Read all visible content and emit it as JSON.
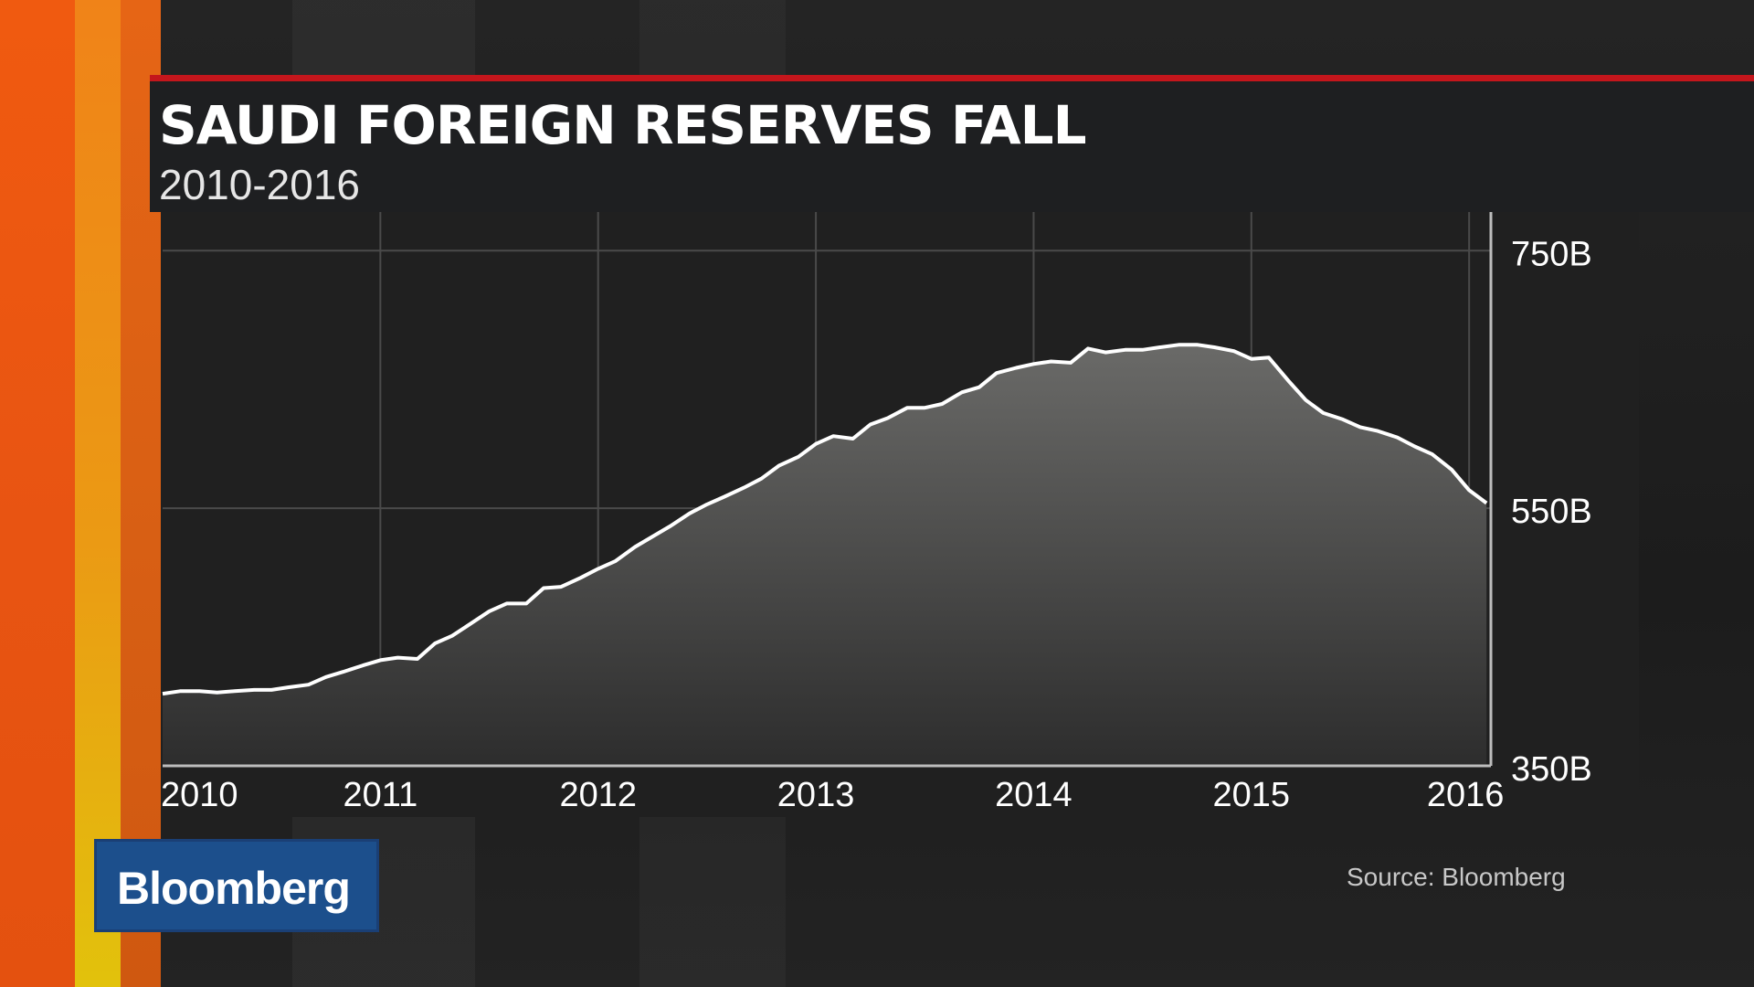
{
  "header": {
    "title": "SAUDI FOREIGN RESERVES FALL",
    "subtitle": "2010-2016"
  },
  "brand": {
    "logo_text": "Bloomberg",
    "badge_color": "#1c4f8c",
    "accent_color": "#c4161c"
  },
  "footer": {
    "source": "Source: Bloomberg"
  },
  "chart_data": {
    "type": "area",
    "title": "SAUDI FOREIGN RESERVES FALL",
    "subtitle": "2010-2016",
    "xlabel": "",
    "ylabel": "",
    "x_unit": "year",
    "xlim": [
      2010,
      2016.1
    ],
    "ylim": [
      350,
      780
    ],
    "x_ticks": [
      2010,
      2011,
      2012,
      2013,
      2014,
      2015,
      2016
    ],
    "x_tick_labels": [
      "2010",
      "2011",
      "2012",
      "2013",
      "2014",
      "2015",
      "2016"
    ],
    "y_ticks": [
      350,
      550,
      750
    ],
    "y_tick_labels": [
      "350B",
      "550B",
      "750B"
    ],
    "y_axis_position": "right",
    "grid": true,
    "line_color": "#ffffff",
    "series": [
      {
        "x": [
          2010.0,
          2010.08,
          2010.17,
          2010.25,
          2010.33,
          2010.42,
          2010.5,
          2010.58,
          2010.67,
          2010.75,
          2010.83,
          2010.92,
          2011.0,
          2011.08,
          2011.17,
          2011.25,
          2011.33,
          2011.42,
          2011.5,
          2011.58,
          2011.67,
          2011.75,
          2011.83,
          2011.92,
          2012.0,
          2012.08,
          2012.17,
          2012.25,
          2012.33,
          2012.42,
          2012.5,
          2012.58,
          2012.67,
          2012.75,
          2012.83,
          2012.92,
          2013.0,
          2013.08,
          2013.17,
          2013.25,
          2013.33,
          2013.42,
          2013.5,
          2013.58,
          2013.67,
          2013.75,
          2013.83,
          2013.92,
          2014.0,
          2014.08,
          2014.17,
          2014.25,
          2014.33,
          2014.42,
          2014.5,
          2014.58,
          2014.67,
          2014.75,
          2014.83,
          2014.92,
          2015.0,
          2015.08,
          2015.17,
          2015.25,
          2015.33,
          2015.42,
          2015.5,
          2015.58,
          2015.67,
          2015.75,
          2015.83,
          2015.92,
          2016.0,
          2016.08
        ],
        "values": [
          406,
          408,
          408,
          407,
          408,
          409,
          409,
          411,
          413,
          419,
          423,
          428,
          432,
          434,
          433,
          445,
          451,
          461,
          470,
          476,
          476,
          488,
          489,
          496,
          503,
          509,
          520,
          528,
          536,
          546,
          553,
          559,
          566,
          573,
          583,
          590,
          600,
          606,
          604,
          615,
          620,
          628,
          628,
          631,
          640,
          644,
          655,
          659,
          662,
          664,
          663,
          674,
          671,
          673,
          673,
          675,
          677,
          677,
          675,
          672,
          666,
          667,
          649,
          634,
          624,
          619,
          613,
          610,
          605,
          598,
          592,
          580,
          564,
          554
        ]
      }
    ]
  }
}
